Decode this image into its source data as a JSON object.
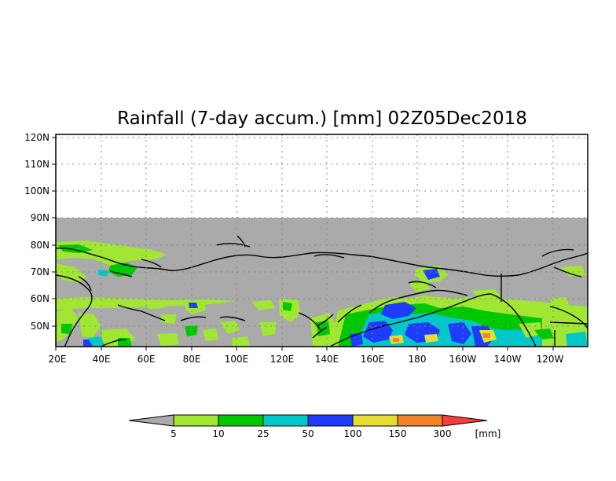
{
  "map": {
    "title": "Rainfall (7-day accum.) [mm] 02Z05Dec2018",
    "lat_labels": [
      "120N",
      "110N",
      "100N",
      "90N",
      "80N",
      "70N",
      "60N",
      "50N"
    ],
    "lon_labels": [
      "20E",
      "40E",
      "60E",
      "80E",
      "100E",
      "120E",
      "140E",
      "160E",
      "180",
      "160W",
      "140W",
      "120W"
    ],
    "colors": {
      "no_data": "#aaaaaa",
      "c5": "#a0e632",
      "c10": "#00c800",
      "c25": "#00c8c8",
      "c50": "#1e3cff",
      "c100": "#e6dc32",
      "c150": "#f08228",
      "c300": "#fa3c3c"
    }
  },
  "legend": {
    "ticks": [
      "5",
      "10",
      "25",
      "50",
      "100",
      "150",
      "300"
    ],
    "unit": "[mm]"
  }
}
